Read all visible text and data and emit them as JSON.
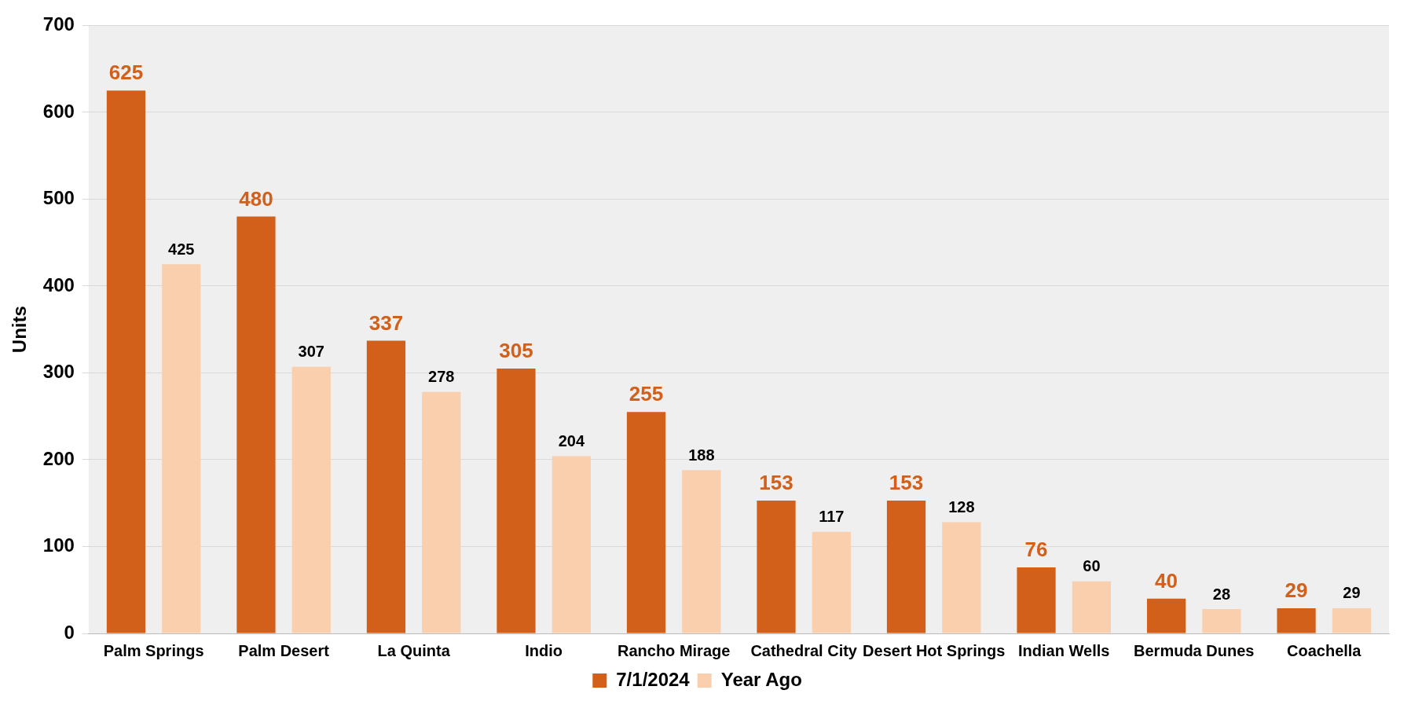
{
  "chart_data": {
    "type": "bar",
    "ylabel": "Units",
    "categories": [
      "Palm Springs",
      "Palm Desert",
      "La Quinta",
      "Indio",
      "Rancho Mirage",
      "Cathedral City",
      "Desert Hot Springs",
      "Indian Wells",
      "Bermuda Dunes",
      "Coachella"
    ],
    "series": [
      {
        "name": "7/1/2024",
        "color": "#d2601a",
        "values": [
          625,
          480,
          337,
          305,
          255,
          153,
          153,
          76,
          40,
          29
        ]
      },
      {
        "name": "Year Ago",
        "color": "#f9cfae",
        "values": [
          425,
          307,
          278,
          204,
          188,
          117,
          128,
          60,
          28,
          29
        ]
      }
    ],
    "ylim": [
      0,
      700
    ],
    "yticks": [
      0,
      100,
      200,
      300,
      400,
      500,
      600,
      700
    ],
    "grid": "y",
    "legend": "bottom",
    "data_labels": true
  }
}
